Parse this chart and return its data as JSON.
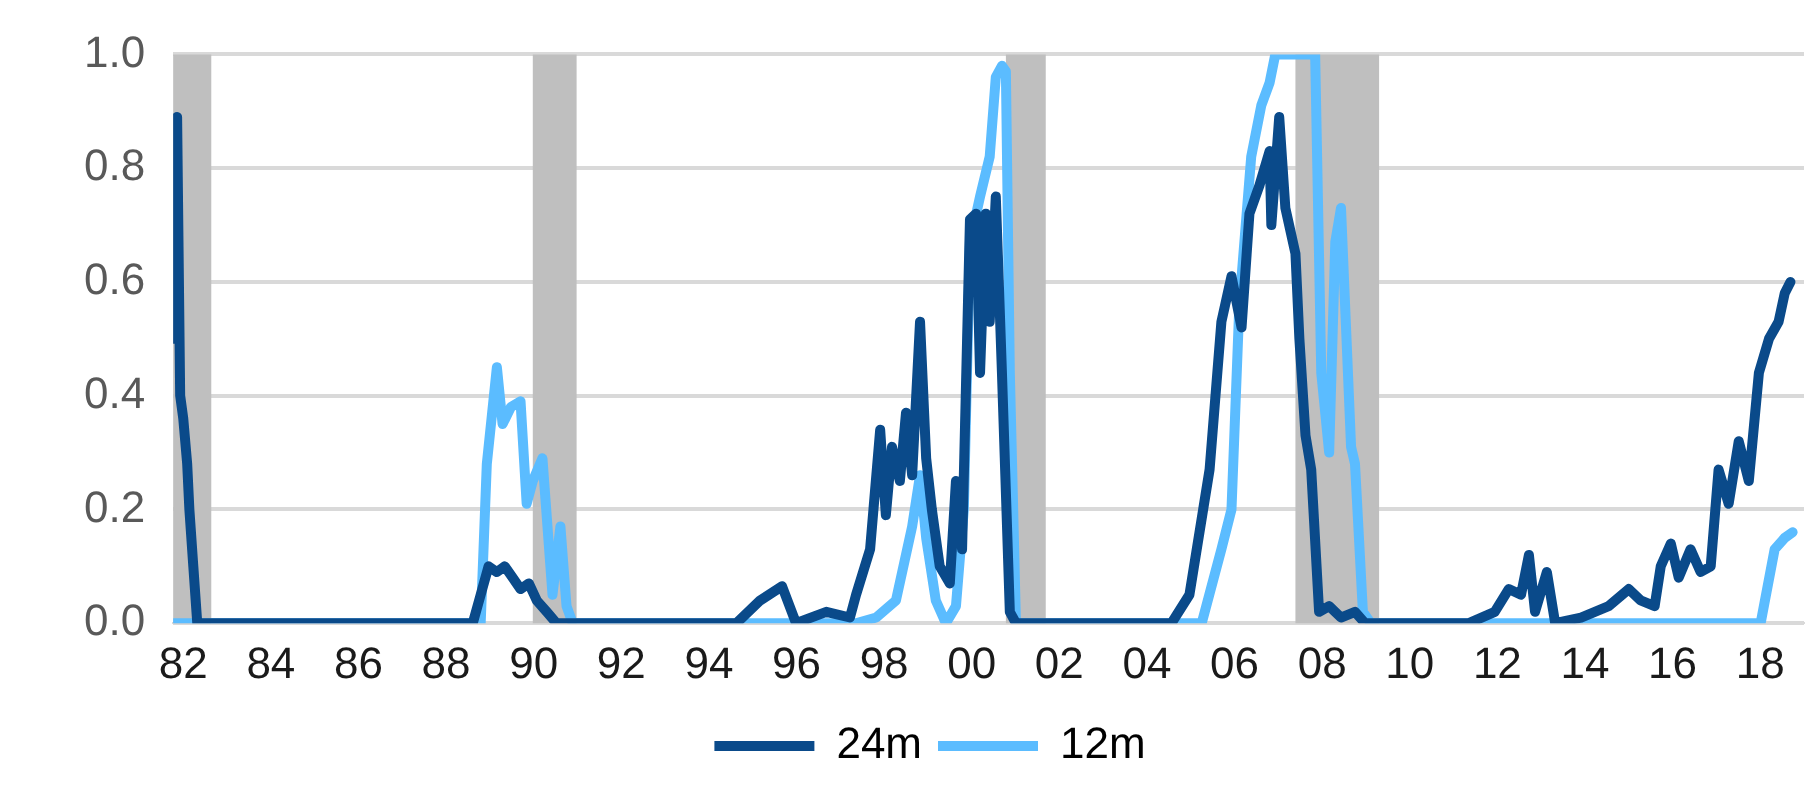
{
  "chart_data": {
    "type": "line",
    "xlim": [
      1981.77,
      2019.0
    ],
    "ylim": [
      0,
      1
    ],
    "xticks": [
      {
        "value": 1982,
        "label": "82"
      },
      {
        "value": 1984,
        "label": "84"
      },
      {
        "value": 1986,
        "label": "86"
      },
      {
        "value": 1988,
        "label": "88"
      },
      {
        "value": 1990,
        "label": "90"
      },
      {
        "value": 1992,
        "label": "92"
      },
      {
        "value": 1994,
        "label": "94"
      },
      {
        "value": 1996,
        "label": "96"
      },
      {
        "value": 1998,
        "label": "98"
      },
      {
        "value": 2000,
        "label": "00"
      },
      {
        "value": 2002,
        "label": "02"
      },
      {
        "value": 2004,
        "label": "04"
      },
      {
        "value": 2006,
        "label": "06"
      },
      {
        "value": 2008,
        "label": "08"
      },
      {
        "value": 2010,
        "label": "10"
      },
      {
        "value": 2012,
        "label": "12"
      },
      {
        "value": 2014,
        "label": "14"
      },
      {
        "value": 2016,
        "label": "16"
      },
      {
        "value": 2018,
        "label": "18"
      }
    ],
    "yticks": [
      {
        "value": 0,
        "label": "0.0"
      },
      {
        "value": 0.2,
        "label": "0.2"
      },
      {
        "value": 0.4,
        "label": "0.4"
      },
      {
        "value": 0.6,
        "label": "0.6"
      },
      {
        "value": 0.8,
        "label": "0.8"
      },
      {
        "value": 1,
        "label": "1.0"
      }
    ],
    "grid": "y",
    "legend": "bottom",
    "marker": "none",
    "line_style": "solid",
    "bands": [
      {
        "axis": "x",
        "from": 1981.77,
        "to": 1982.64,
        "color": "#bfbfbf"
      },
      {
        "axis": "x",
        "from": 1989.98,
        "to": 1990.98,
        "color": "#bfbfbf"
      },
      {
        "axis": "x",
        "from": 2000.78,
        "to": 2001.69,
        "color": "#bfbfbf"
      },
      {
        "axis": "x",
        "from": 2007.39,
        "to": 2009.3,
        "color": "#bfbfbf"
      }
    ],
    "series": [
      {
        "name": "24m",
        "color": "#0a4a8a",
        "x": [
          1981.77,
          1981.86,
          1981.93,
          1982.0,
          1982.09,
          1982.14,
          1982.23,
          1982.32,
          1988.61,
          1988.79,
          1988.97,
          1989.16,
          1989.34,
          1989.52,
          1989.7,
          1989.89,
          1990.07,
          1990.3,
          1990.52,
          1994.63,
          1995.17,
          1995.67,
          1995.99,
          1996.68,
          1997.22,
          1997.36,
          1997.68,
          1997.91,
          1998.04,
          1998.18,
          1998.36,
          1998.5,
          1998.64,
          1998.82,
          1998.96,
          1999.09,
          1999.27,
          1999.5,
          1999.64,
          1999.78,
          1999.96,
          2000.1,
          2000.19,
          2000.32,
          2000.41,
          2000.55,
          2000.69,
          2000.87,
          2001.01,
          2004.56,
          2004.97,
          2005.43,
          2005.7,
          2005.93,
          2006.16,
          2006.34,
          2006.57,
          2006.8,
          2006.84,
          2007.02,
          2007.16,
          2007.39,
          2007.48,
          2007.62,
          2007.75,
          2007.93,
          2008.16,
          2008.43,
          2008.75,
          2008.98,
          2011.35,
          2011.94,
          2012.26,
          2012.54,
          2012.72,
          2012.86,
          2013.13,
          2013.32,
          2013.91,
          2014.54,
          2015.0,
          2015.27,
          2015.59,
          2015.73,
          2015.96,
          2016.14,
          2016.41,
          2016.64,
          2016.87,
          2017.05,
          2017.28,
          2017.51,
          2017.74,
          2017.97,
          2018.2,
          2018.42,
          2018.56,
          2018.69
        ],
        "values": [
          0.5,
          0.89,
          0.4,
          0.36,
          0.28,
          0.2,
          0.1,
          0,
          0,
          0.05,
          0.1,
          0.09,
          0.1,
          0.08,
          0.06,
          0.07,
          0.04,
          0.02,
          0,
          0,
          0.04,
          0.065,
          0,
          0.02,
          0.01,
          0.05,
          0.13,
          0.34,
          0.19,
          0.31,
          0.25,
          0.37,
          0.26,
          0.53,
          0.29,
          0.2,
          0.1,
          0.07,
          0.25,
          0.13,
          0.71,
          0.72,
          0.44,
          0.72,
          0.53,
          0.75,
          0.44,
          0.02,
          0,
          0,
          0.05,
          0.27,
          0.53,
          0.61,
          0.52,
          0.72,
          0.77,
          0.83,
          0.7,
          0.89,
          0.73,
          0.65,
          0.5,
          0.33,
          0.27,
          0.02,
          0.03,
          0.01,
          0.02,
          0,
          0,
          0.02,
          0.06,
          0.05,
          0.12,
          0.02,
          0.09,
          0,
          0.01,
          0.03,
          0.06,
          0.04,
          0.03,
          0.1,
          0.14,
          0.08,
          0.13,
          0.09,
          0.1,
          0.27,
          0.21,
          0.32,
          0.25,
          0.44,
          0.5,
          0.53,
          0.58,
          0.6
        ]
      },
      {
        "name": "12m",
        "color": "#5bbcff",
        "x": [
          1981.77,
          1988.79,
          1988.93,
          1989.16,
          1989.29,
          1989.48,
          1989.7,
          1989.84,
          1989.98,
          1990.2,
          1990.43,
          1990.61,
          1990.75,
          1990.89,
          1997.36,
          1997.82,
          1998.27,
          1998.64,
          1998.82,
          1998.96,
          1999.18,
          1999.41,
          1999.64,
          1999.82,
          1999.96,
          2000.19,
          2000.41,
          2000.55,
          2000.69,
          2000.78,
          2000.87,
          2001.01,
          2001.1,
          2005.25,
          2005.7,
          2005.93,
          2006.11,
          2006.38,
          2006.61,
          2006.8,
          2006.93,
          2007.84,
          2007.98,
          2008.16,
          2008.3,
          2008.43,
          2008.66,
          2008.75,
          2008.93,
          2009.11,
          2018.01,
          2018.33,
          2018.56,
          2018.74
        ],
        "values": [
          0,
          0,
          0.28,
          0.45,
          0.35,
          0.38,
          0.39,
          0.21,
          0.25,
          0.29,
          0.05,
          0.17,
          0.03,
          0,
          0,
          0.01,
          0.04,
          0.17,
          0.26,
          0.15,
          0.04,
          0,
          0.03,
          0.2,
          0.67,
          0.75,
          0.82,
          0.96,
          0.98,
          0.97,
          0.44,
          0,
          0,
          0,
          0.13,
          0.2,
          0.56,
          0.82,
          0.91,
          0.95,
          1,
          1,
          0.44,
          0.3,
          0.67,
          0.73,
          0.31,
          0.28,
          0.02,
          0,
          0,
          0.13,
          0.15,
          0.16
        ]
      }
    ]
  }
}
